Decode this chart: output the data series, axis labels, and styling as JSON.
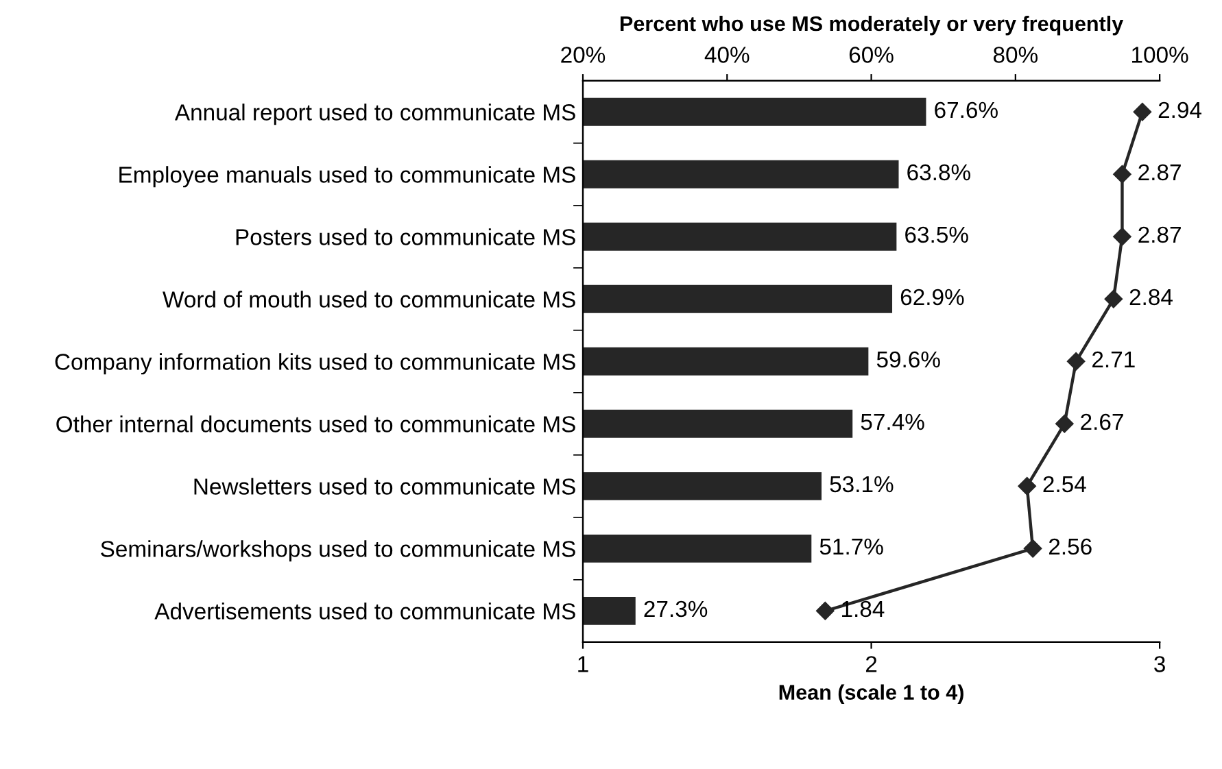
{
  "chart_data": {
    "type": "bar",
    "orientation": "horizontal",
    "xlabel": "Mean (scale 1 to 4)",
    "x2label": "Percent who use MS moderately or very frequently",
    "categories": [
      "Annual report used to communicate MS",
      "Employee manuals used to communicate MS",
      "Posters used to communicate MS",
      "Word of mouth used to communicate MS",
      "Company information kits used to communicate MS",
      "Other internal documents used to communicate MS",
      "Newsletters used to communicate MS",
      "Seminars/workshops used to communicate MS",
      "Advertisements used to communicate MS"
    ],
    "xlim": [
      1,
      3
    ],
    "xticks": [
      1,
      2,
      3
    ],
    "x2lim": [
      20,
      100
    ],
    "x2ticks": [
      {
        "value": 20,
        "label": "20%"
      },
      {
        "value": 40,
        "label": "40%"
      },
      {
        "value": 60,
        "label": "60%"
      },
      {
        "value": 80,
        "label": "80%"
      },
      {
        "value": 100,
        "label": "100%"
      }
    ],
    "series": [
      {
        "axis": "x2",
        "color": "#262626",
        "values": [
          67.6,
          63.8,
          63.5,
          62.9,
          59.6,
          57.4,
          53.1,
          51.7,
          27.3
        ],
        "value_labels": [
          "67.6%",
          "63.8%",
          "63.5%",
          "62.9%",
          "59.6%",
          "57.4%",
          "53.1%",
          "51.7%",
          "27.3%"
        ]
      },
      {
        "type": "line",
        "color": "#262626",
        "marker": "diamond",
        "values": [
          2.94,
          2.87,
          2.87,
          2.84,
          2.71,
          2.67,
          2.54,
          2.56,
          1.84
        ],
        "value_labels": [
          "2.94",
          "2.87",
          "2.87",
          "2.84",
          "2.71",
          "2.67",
          "2.54",
          "2.56",
          "1.84"
        ]
      }
    ],
    "grid": false,
    "legend": false
  }
}
